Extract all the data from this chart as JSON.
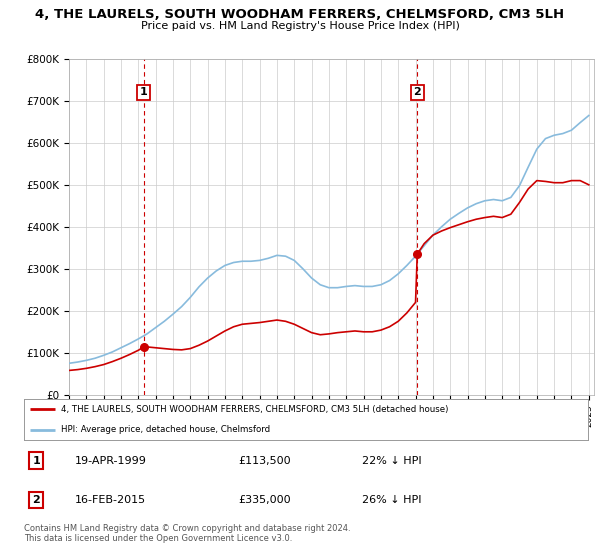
{
  "title": "4, THE LAURELS, SOUTH WOODHAM FERRERS, CHELMSFORD, CM3 5LH",
  "subtitle": "Price paid vs. HM Land Registry's House Price Index (HPI)",
  "title_fontsize": 9.5,
  "subtitle_fontsize": 8,
  "hpi_color": "#88bbdd",
  "price_color": "#cc0000",
  "hpi_label": "HPI: Average price, detached house, Chelmsford",
  "price_label": "4, THE LAURELS, SOUTH WOODHAM FERRERS, CHELMSFORD, CM3 5LH (detached house)",
  "transaction1": {
    "date": "19-APR-1999",
    "price": 113500,
    "hpi_diff": "22% ↓ HPI",
    "label": "1",
    "year": 1999.3
  },
  "transaction2": {
    "date": "16-FEB-2015",
    "price": 335000,
    "hpi_diff": "26% ↓ HPI",
    "label": "2",
    "year": 2015.1
  },
  "footer": "Contains HM Land Registry data © Crown copyright and database right 2024.\nThis data is licensed under the Open Government Licence v3.0.",
  "ylim": [
    0,
    800000
  ],
  "yticks": [
    0,
    100000,
    200000,
    300000,
    400000,
    500000,
    600000,
    700000,
    800000
  ],
  "ytick_labels": [
    "£0",
    "£100K",
    "£200K",
    "£300K",
    "£400K",
    "£500K",
    "£600K",
    "£700K",
    "£800K"
  ],
  "background_color": "#ffffff",
  "grid_color": "#cccccc",
  "dashed_vline_color": "#cc0000",
  "hpi_x": [
    1995.0,
    1995.5,
    1996.0,
    1996.5,
    1997.0,
    1997.5,
    1998.0,
    1998.5,
    1999.0,
    1999.5,
    2000.0,
    2000.5,
    2001.0,
    2001.5,
    2002.0,
    2002.5,
    2003.0,
    2003.5,
    2004.0,
    2004.5,
    2005.0,
    2005.5,
    2006.0,
    2006.5,
    2007.0,
    2007.5,
    2008.0,
    2008.5,
    2009.0,
    2009.5,
    2010.0,
    2010.5,
    2011.0,
    2011.5,
    2012.0,
    2012.5,
    2013.0,
    2013.5,
    2014.0,
    2014.5,
    2015.0,
    2015.5,
    2016.0,
    2016.5,
    2017.0,
    2017.5,
    2018.0,
    2018.5,
    2019.0,
    2019.5,
    2020.0,
    2020.5,
    2021.0,
    2021.5,
    2022.0,
    2022.5,
    2023.0,
    2023.5,
    2024.0,
    2024.5,
    2025.0
  ],
  "hpi_y": [
    75000,
    78000,
    82000,
    87000,
    94000,
    102000,
    112000,
    122000,
    133000,
    145000,
    160000,
    175000,
    192000,
    210000,
    232000,
    257000,
    278000,
    295000,
    308000,
    315000,
    318000,
    318000,
    320000,
    325000,
    332000,
    330000,
    320000,
    300000,
    278000,
    262000,
    255000,
    255000,
    258000,
    260000,
    258000,
    258000,
    262000,
    272000,
    288000,
    308000,
    330000,
    355000,
    380000,
    400000,
    418000,
    432000,
    445000,
    455000,
    462000,
    465000,
    462000,
    470000,
    498000,
    542000,
    585000,
    610000,
    618000,
    622000,
    630000,
    648000,
    665000
  ],
  "price_x": [
    1995.0,
    1995.5,
    1996.0,
    1996.5,
    1997.0,
    1997.5,
    1998.0,
    1998.5,
    1999.0,
    1999.3,
    1999.5,
    2000.0,
    2000.5,
    2001.0,
    2001.5,
    2002.0,
    2002.5,
    2003.0,
    2003.5,
    2004.0,
    2004.5,
    2005.0,
    2005.5,
    2006.0,
    2006.5,
    2007.0,
    2007.5,
    2008.0,
    2008.5,
    2009.0,
    2009.5,
    2010.0,
    2010.5,
    2011.0,
    2011.5,
    2012.0,
    2012.5,
    2013.0,
    2013.5,
    2014.0,
    2014.5,
    2015.0,
    2015.1,
    2015.5,
    2016.0,
    2016.5,
    2017.0,
    2017.5,
    2018.0,
    2018.5,
    2019.0,
    2019.5,
    2020.0,
    2020.5,
    2021.0,
    2021.5,
    2022.0,
    2022.5,
    2023.0,
    2023.5,
    2024.0,
    2024.5,
    2025.0
  ],
  "price_y": [
    58000,
    60000,
    63000,
    67000,
    72000,
    79000,
    87000,
    96000,
    106000,
    113500,
    114000,
    112000,
    110000,
    108000,
    107000,
    110000,
    118000,
    128000,
    140000,
    152000,
    162000,
    168000,
    170000,
    172000,
    175000,
    178000,
    175000,
    168000,
    158000,
    148000,
    143000,
    145000,
    148000,
    150000,
    152000,
    150000,
    150000,
    154000,
    162000,
    175000,
    195000,
    220000,
    335000,
    360000,
    380000,
    390000,
    398000,
    405000,
    412000,
    418000,
    422000,
    425000,
    422000,
    430000,
    458000,
    490000,
    510000,
    508000,
    505000,
    505000,
    510000,
    510000,
    500000
  ]
}
